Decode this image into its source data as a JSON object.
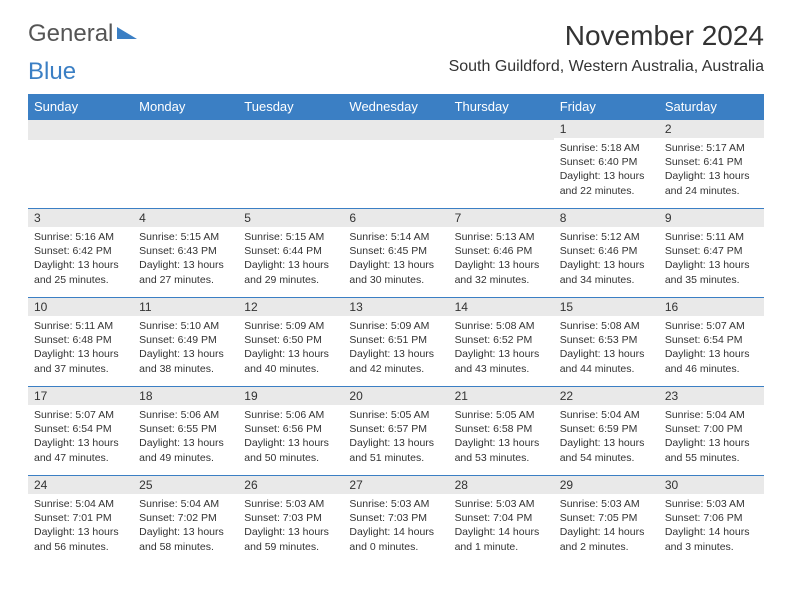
{
  "logo": {
    "text1": "General",
    "text2": "Blue"
  },
  "title": "November 2024",
  "location": "South Guildford, Western Australia, Australia",
  "colors": {
    "header_bg": "#3b7fc4",
    "header_text": "#ffffff",
    "daynum_bg": "#e9e9e9",
    "border": "#3b7fc4",
    "text": "#333333",
    "background": "#ffffff"
  },
  "day_headers": [
    "Sunday",
    "Monday",
    "Tuesday",
    "Wednesday",
    "Thursday",
    "Friday",
    "Saturday"
  ],
  "weeks": [
    [
      {
        "n": "",
        "sr": "",
        "ss": "",
        "dl": ""
      },
      {
        "n": "",
        "sr": "",
        "ss": "",
        "dl": ""
      },
      {
        "n": "",
        "sr": "",
        "ss": "",
        "dl": ""
      },
      {
        "n": "",
        "sr": "",
        "ss": "",
        "dl": ""
      },
      {
        "n": "",
        "sr": "",
        "ss": "",
        "dl": ""
      },
      {
        "n": "1",
        "sr": "Sunrise: 5:18 AM",
        "ss": "Sunset: 6:40 PM",
        "dl": "Daylight: 13 hours and 22 minutes."
      },
      {
        "n": "2",
        "sr": "Sunrise: 5:17 AM",
        "ss": "Sunset: 6:41 PM",
        "dl": "Daylight: 13 hours and 24 minutes."
      }
    ],
    [
      {
        "n": "3",
        "sr": "Sunrise: 5:16 AM",
        "ss": "Sunset: 6:42 PM",
        "dl": "Daylight: 13 hours and 25 minutes."
      },
      {
        "n": "4",
        "sr": "Sunrise: 5:15 AM",
        "ss": "Sunset: 6:43 PM",
        "dl": "Daylight: 13 hours and 27 minutes."
      },
      {
        "n": "5",
        "sr": "Sunrise: 5:15 AM",
        "ss": "Sunset: 6:44 PM",
        "dl": "Daylight: 13 hours and 29 minutes."
      },
      {
        "n": "6",
        "sr": "Sunrise: 5:14 AM",
        "ss": "Sunset: 6:45 PM",
        "dl": "Daylight: 13 hours and 30 minutes."
      },
      {
        "n": "7",
        "sr": "Sunrise: 5:13 AM",
        "ss": "Sunset: 6:46 PM",
        "dl": "Daylight: 13 hours and 32 minutes."
      },
      {
        "n": "8",
        "sr": "Sunrise: 5:12 AM",
        "ss": "Sunset: 6:46 PM",
        "dl": "Daylight: 13 hours and 34 minutes."
      },
      {
        "n": "9",
        "sr": "Sunrise: 5:11 AM",
        "ss": "Sunset: 6:47 PM",
        "dl": "Daylight: 13 hours and 35 minutes."
      }
    ],
    [
      {
        "n": "10",
        "sr": "Sunrise: 5:11 AM",
        "ss": "Sunset: 6:48 PM",
        "dl": "Daylight: 13 hours and 37 minutes."
      },
      {
        "n": "11",
        "sr": "Sunrise: 5:10 AM",
        "ss": "Sunset: 6:49 PM",
        "dl": "Daylight: 13 hours and 38 minutes."
      },
      {
        "n": "12",
        "sr": "Sunrise: 5:09 AM",
        "ss": "Sunset: 6:50 PM",
        "dl": "Daylight: 13 hours and 40 minutes."
      },
      {
        "n": "13",
        "sr": "Sunrise: 5:09 AM",
        "ss": "Sunset: 6:51 PM",
        "dl": "Daylight: 13 hours and 42 minutes."
      },
      {
        "n": "14",
        "sr": "Sunrise: 5:08 AM",
        "ss": "Sunset: 6:52 PM",
        "dl": "Daylight: 13 hours and 43 minutes."
      },
      {
        "n": "15",
        "sr": "Sunrise: 5:08 AM",
        "ss": "Sunset: 6:53 PM",
        "dl": "Daylight: 13 hours and 44 minutes."
      },
      {
        "n": "16",
        "sr": "Sunrise: 5:07 AM",
        "ss": "Sunset: 6:54 PM",
        "dl": "Daylight: 13 hours and 46 minutes."
      }
    ],
    [
      {
        "n": "17",
        "sr": "Sunrise: 5:07 AM",
        "ss": "Sunset: 6:54 PM",
        "dl": "Daylight: 13 hours and 47 minutes."
      },
      {
        "n": "18",
        "sr": "Sunrise: 5:06 AM",
        "ss": "Sunset: 6:55 PM",
        "dl": "Daylight: 13 hours and 49 minutes."
      },
      {
        "n": "19",
        "sr": "Sunrise: 5:06 AM",
        "ss": "Sunset: 6:56 PM",
        "dl": "Daylight: 13 hours and 50 minutes."
      },
      {
        "n": "20",
        "sr": "Sunrise: 5:05 AM",
        "ss": "Sunset: 6:57 PM",
        "dl": "Daylight: 13 hours and 51 minutes."
      },
      {
        "n": "21",
        "sr": "Sunrise: 5:05 AM",
        "ss": "Sunset: 6:58 PM",
        "dl": "Daylight: 13 hours and 53 minutes."
      },
      {
        "n": "22",
        "sr": "Sunrise: 5:04 AM",
        "ss": "Sunset: 6:59 PM",
        "dl": "Daylight: 13 hours and 54 minutes."
      },
      {
        "n": "23",
        "sr": "Sunrise: 5:04 AM",
        "ss": "Sunset: 7:00 PM",
        "dl": "Daylight: 13 hours and 55 minutes."
      }
    ],
    [
      {
        "n": "24",
        "sr": "Sunrise: 5:04 AM",
        "ss": "Sunset: 7:01 PM",
        "dl": "Daylight: 13 hours and 56 minutes."
      },
      {
        "n": "25",
        "sr": "Sunrise: 5:04 AM",
        "ss": "Sunset: 7:02 PM",
        "dl": "Daylight: 13 hours and 58 minutes."
      },
      {
        "n": "26",
        "sr": "Sunrise: 5:03 AM",
        "ss": "Sunset: 7:03 PM",
        "dl": "Daylight: 13 hours and 59 minutes."
      },
      {
        "n": "27",
        "sr": "Sunrise: 5:03 AM",
        "ss": "Sunset: 7:03 PM",
        "dl": "Daylight: 14 hours and 0 minutes."
      },
      {
        "n": "28",
        "sr": "Sunrise: 5:03 AM",
        "ss": "Sunset: 7:04 PM",
        "dl": "Daylight: 14 hours and 1 minute."
      },
      {
        "n": "29",
        "sr": "Sunrise: 5:03 AM",
        "ss": "Sunset: 7:05 PM",
        "dl": "Daylight: 14 hours and 2 minutes."
      },
      {
        "n": "30",
        "sr": "Sunrise: 5:03 AM",
        "ss": "Sunset: 7:06 PM",
        "dl": "Daylight: 14 hours and 3 minutes."
      }
    ]
  ]
}
